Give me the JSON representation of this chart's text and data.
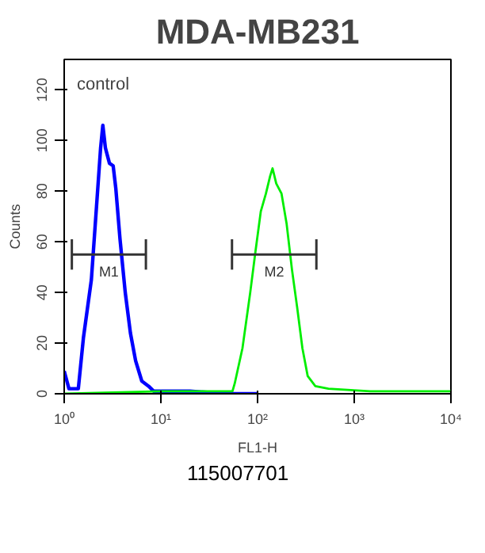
{
  "chart_data": {
    "type": "line",
    "title": "MDA-MB231",
    "xlabel": "FL1-H",
    "ylabel": "Counts",
    "log": "x",
    "grid": false,
    "marker": "none",
    "line_style": "solid",
    "xlim": [
      1,
      10000
    ],
    "xticks": [
      {
        "value": 1,
        "label": "10⁰"
      },
      {
        "value": 10,
        "label": "10¹"
      },
      {
        "value": 100,
        "label": "10²"
      },
      {
        "value": 1000,
        "label": "10³"
      },
      {
        "value": 10000,
        "label": "10⁴"
      }
    ],
    "ylim": [
      0,
      132
    ],
    "yticks": [
      0,
      20,
      40,
      60,
      80,
      100,
      120
    ],
    "series": [
      {
        "color": "#0000ff",
        "x": [
          1,
          1.12,
          1.4,
          1.58,
          1.91,
          2.16,
          2.38,
          2.51,
          2.67,
          2.94,
          3.21,
          3.42,
          3.78,
          4.28,
          4.84,
          5.48,
          6.35,
          7.46,
          8.45,
          10,
          20,
          50,
          100
        ],
        "values": [
          9,
          2,
          2,
          22,
          45,
          74,
          97,
          106,
          97,
          91,
          90,
          81,
          61,
          40,
          24,
          13,
          5,
          3,
          1,
          1,
          1,
          0,
          0
        ]
      },
      {
        "color": "#00ee00",
        "x": [
          1,
          10,
          30,
          55,
          58,
          69.8,
          84,
          95,
          108,
          122,
          135,
          143,
          156,
          177,
          200,
          227,
          257,
          291,
          330,
          396,
          541,
          1460,
          10000
        ],
        "values": [
          0,
          1,
          1,
          1,
          4,
          18,
          40,
          56,
          72,
          79,
          86,
          89,
          83,
          79,
          67,
          49,
          34,
          18,
          7,
          3,
          2,
          1,
          1
        ]
      },
      {
        "name": "M1",
        "color": "#333333",
        "x": [
          1.2,
          7.0
        ],
        "values": [
          55,
          55
        ],
        "errors": [
          6,
          6
        ]
      },
      {
        "name": "M2",
        "color": "#333333",
        "x": [
          54.4,
          406
        ],
        "values": [
          55,
          55
        ],
        "errors": [
          6,
          6
        ]
      }
    ],
    "annotations": [
      "control",
      "115007701"
    ]
  }
}
